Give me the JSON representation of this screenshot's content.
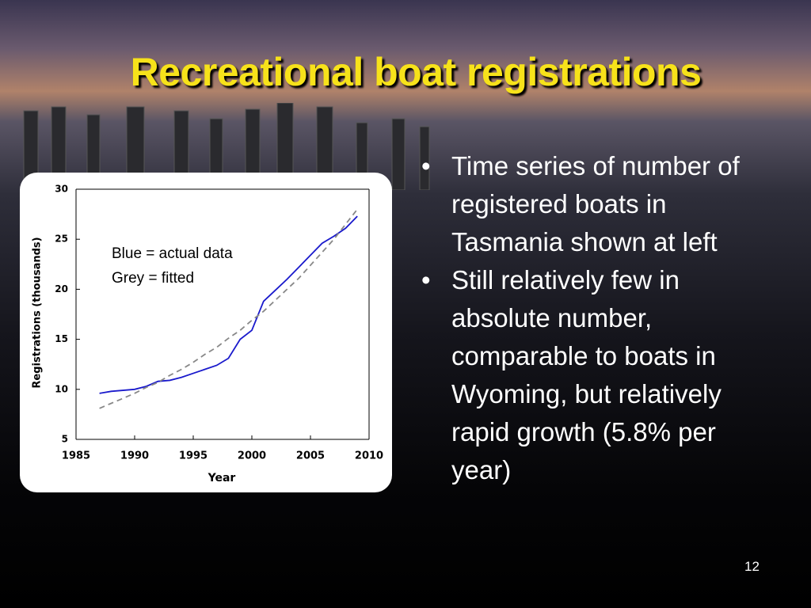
{
  "title": "Recreational boat registrations",
  "bullets": [
    "Time series of number of registered boats in Tasmania shown at left",
    "Still relatively few in absolute number, comparable to boats in Wyoming, but relatively rapid growth (5.8% per year)"
  ],
  "page_number": "12",
  "chart_data": {
    "type": "line",
    "x_label": "Year",
    "y_label": "Registrations (thousands)",
    "annotations": [
      "Blue = actual data",
      "Grey = fitted"
    ],
    "x": [
      1987,
      1988,
      1989,
      1990,
      1991,
      1992,
      1993,
      1994,
      1995,
      1996,
      1997,
      1998,
      1999,
      2000,
      2001,
      2002,
      2003,
      2004,
      2005,
      2006,
      2007,
      2008,
      2009
    ],
    "series": [
      {
        "color": "#1a1acc",
        "style": "solid",
        "values": [
          9.6,
          9.8,
          9.9,
          10.0,
          10.3,
          10.8,
          10.9,
          11.2,
          11.6,
          12.0,
          12.4,
          13.1,
          15.0,
          15.9,
          18.8,
          19.9,
          21.0,
          22.2,
          23.4,
          24.6,
          25.3,
          26.1,
          27.3
        ]
      },
      {
        "color": "#888888",
        "style": "dashed",
        "values": [
          8.1,
          8.6,
          9.1,
          9.6,
          10.2,
          10.7,
          11.4,
          12.0,
          12.7,
          13.5,
          14.2,
          15.1,
          15.9,
          16.9,
          17.8,
          18.9,
          20.0,
          21.1,
          22.4,
          23.7,
          25.0,
          26.5,
          28.0
        ]
      }
    ],
    "xlim": [
      1985,
      2010
    ],
    "xticks": [
      1985,
      1990,
      1995,
      2000,
      2005,
      2010
    ],
    "ylim": [
      5,
      30
    ],
    "yticks": [
      5,
      10,
      15,
      20,
      25,
      30
    ]
  }
}
